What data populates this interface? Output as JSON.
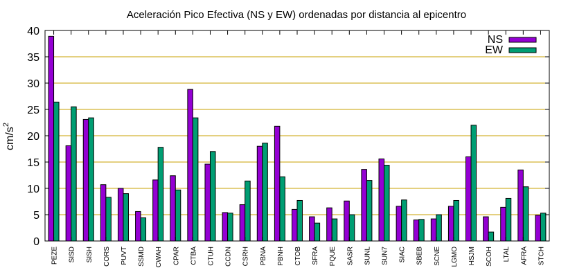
{
  "chart_data": {
    "type": "bar",
    "title": "Aceleración Pico Efectiva (NS y EW) ordenadas por distancia al epicentro",
    "ylabel": "cm/s",
    "ylabel_sup": "2",
    "xlabel": "",
    "ylim": [
      0,
      40
    ],
    "yticks": [
      0,
      5,
      10,
      15,
      20,
      25,
      30,
      35,
      40
    ],
    "grid": "horizontal",
    "legend_position": "top-right",
    "categories": [
      "PEZE",
      "SISD",
      "SISH",
      "CORS",
      "PUVT",
      "SSMD",
      "CWAH",
      "CPAR",
      "CTBA",
      "CTUH",
      "CCDN",
      "CSRH",
      "PBNA",
      "PBNH",
      "CTOB",
      "SFRA",
      "PQUE",
      "SASR",
      "SUNL",
      "SUN7",
      "SIAC",
      "SBEB",
      "SCNE",
      "LGMO",
      "HSJM",
      "SCOH",
      "LTAL",
      "AFRA",
      "STCH"
    ],
    "series": [
      {
        "name": "NS",
        "color": "#9400d3",
        "values": [
          38.9,
          18.1,
          23.1,
          10.7,
          10.0,
          5.6,
          11.6,
          12.4,
          28.8,
          14.6,
          5.4,
          6.9,
          18.0,
          21.8,
          6.0,
          4.6,
          6.3,
          7.6,
          13.6,
          15.6,
          6.6,
          4.0,
          4.2,
          6.6,
          16.0,
          4.6,
          6.4,
          13.5,
          4.9
        ]
      },
      {
        "name": "EW",
        "color": "#009e73",
        "values": [
          26.4,
          25.5,
          23.4,
          8.3,
          9.0,
          4.4,
          17.8,
          9.7,
          23.4,
          17.0,
          5.3,
          11.4,
          18.6,
          12.2,
          7.7,
          3.4,
          4.2,
          5.0,
          11.5,
          14.4,
          7.8,
          4.1,
          5.0,
          7.7,
          22.0,
          1.7,
          8.1,
          10.3,
          5.3
        ]
      }
    ]
  }
}
